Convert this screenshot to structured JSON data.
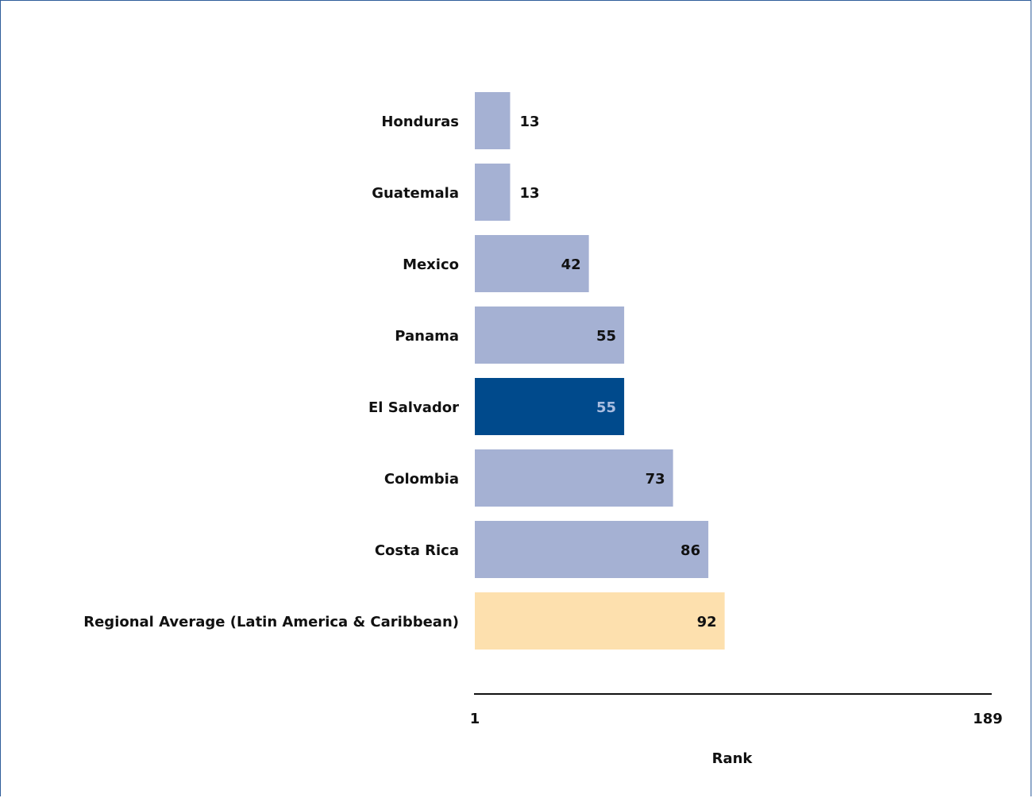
{
  "chart_data": {
    "type": "bar",
    "orientation": "horizontal",
    "categories": [
      "Honduras",
      "Guatemala",
      "Mexico",
      "Panama",
      "El Salvador",
      "Colombia",
      "Costa Rica",
      "Regional Average (Latin America & Caribbean)"
    ],
    "values": [
      13,
      13,
      42,
      55,
      55,
      73,
      86,
      92
    ],
    "highlight": {
      "El Salvador": "#004a8c",
      "Regional Average (Latin America & Caribbean)": "#fde0ae"
    },
    "default_color": "#a5b1d3",
    "xlabel": "Rank",
    "xlim": [
      1,
      189
    ],
    "x_tick_labels": [
      "1",
      "189"
    ],
    "grid": false,
    "legend": "none"
  }
}
